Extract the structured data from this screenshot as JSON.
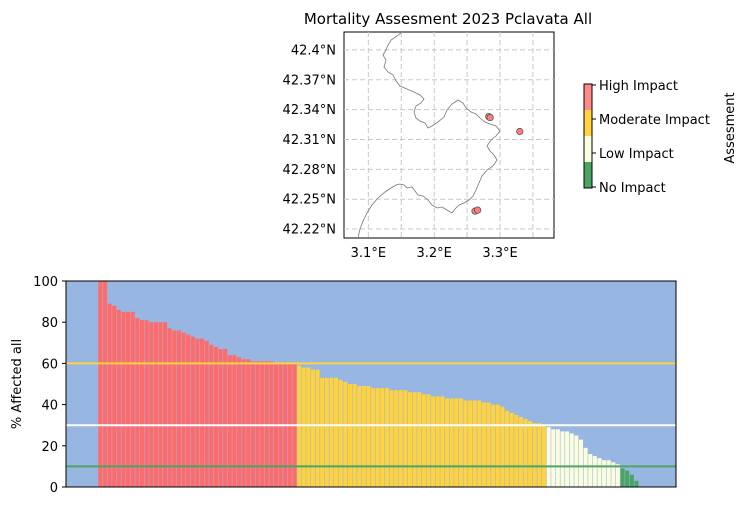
{
  "map_title": "Mortality Assesment 2023 Pclavata All",
  "map": {
    "lat_ticks": [
      "42.4°N",
      "42.37°N",
      "42.34°N",
      "42.31°N",
      "42.28°N",
      "42.25°N",
      "42.22°N"
    ],
    "lon_ticks": [
      "3.1°E",
      "3.2°E",
      "3.3°E"
    ],
    "grid": "dashed",
    "sites": [
      {
        "lon": 3.283,
        "lat": 42.333,
        "color": "#ff7f7f"
      },
      {
        "lon": 3.285,
        "lat": 42.332,
        "color": "#ff7f7f"
      },
      {
        "lon": 3.33,
        "lat": 42.318,
        "color": "#ff7f7f"
      },
      {
        "lon": 3.262,
        "lat": 42.238,
        "color": "#ff7f7f"
      },
      {
        "lon": 3.266,
        "lat": 42.239,
        "color": "#ff7f7f"
      }
    ]
  },
  "legend": {
    "title": "Assesment",
    "levels": [
      {
        "label": "High Impact",
        "color": "#ff8a8a"
      },
      {
        "label": "Moderate Impact",
        "color": "#ffd23f"
      },
      {
        "label": "Low Impact",
        "color": "#fafde0"
      },
      {
        "label": "No Impact",
        "color": "#4aa564"
      }
    ]
  },
  "chart_data": {
    "type": "bar",
    "ylabel": "% Affected all",
    "xlabel": "",
    "ylim": [
      0,
      100
    ],
    "yticks": [
      0,
      20,
      40,
      60,
      80,
      100
    ],
    "background_color": "#97b6e1",
    "grid": false,
    "thresholds": [
      {
        "value": 60,
        "color": "#ffd23f"
      },
      {
        "value": 30,
        "color": "#ffffff"
      },
      {
        "value": 10,
        "color": "#4aa564"
      }
    ],
    "leading_empty_slots": 7,
    "categories_color": {
      "high": "#ff6b6b",
      "moderate": "#ffd23f",
      "low": "#fafde0",
      "none": "#4aa564"
    },
    "values": [
      100,
      100,
      89,
      88,
      86,
      85,
      85,
      85,
      82,
      81,
      81,
      80,
      80,
      80,
      80,
      77,
      76,
      76,
      75,
      74,
      73,
      72,
      72,
      71,
      69,
      68,
      67,
      67,
      64,
      64,
      63,
      62,
      62,
      61,
      61,
      61,
      61,
      61,
      60,
      60,
      60,
      60,
      60,
      59,
      58,
      58,
      57,
      57,
      53,
      53,
      53,
      53,
      52,
      51,
      50,
      50,
      49,
      49,
      49,
      48,
      48,
      48,
      48,
      47,
      47,
      47,
      47,
      46,
      46,
      46,
      45,
      45,
      44,
      44,
      44,
      43,
      43,
      43,
      43,
      42,
      42,
      42,
      42,
      41,
      41,
      40,
      40,
      39,
      37,
      36,
      35,
      34,
      33,
      32,
      31,
      31,
      30,
      29,
      28,
      28,
      27,
      27,
      26,
      25,
      23,
      19,
      16,
      15,
      14,
      13,
      13,
      12,
      11,
      9,
      8,
      6,
      3
    ]
  }
}
